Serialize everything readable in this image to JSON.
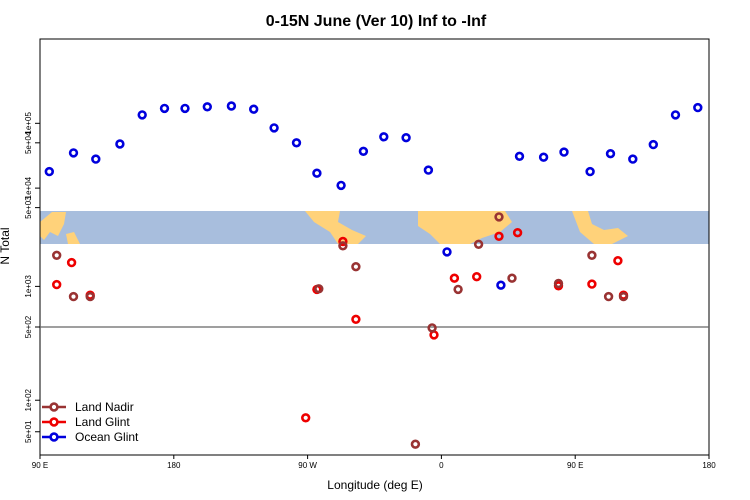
{
  "chart_data": {
    "type": "scatter",
    "title": "0-15N June (Ver 10)   Inf to -Inf",
    "xlabel": "Longitude (deg E)",
    "ylabel": "N Total",
    "x_axis": {
      "range": [
        0,
        360
      ],
      "ticks": [
        {
          "pos": 0,
          "label": "90 E"
        },
        {
          "pos": 72,
          "label": "180"
        },
        {
          "pos": 144,
          "label": "90 W"
        },
        {
          "pos": 216,
          "label": "0"
        },
        {
          "pos": 288,
          "label": "90 E"
        },
        {
          "pos": 360,
          "label": "180"
        }
      ]
    },
    "upper_panel": {
      "scale": "log",
      "range": [
        3000,
        2000000
      ],
      "ticks": [
        {
          "value": 5000,
          "label": "5e+03"
        },
        {
          "value": 10000,
          "label": "1e+04"
        },
        {
          "value": 50000,
          "label": "5e+04"
        },
        {
          "value": 100000,
          "label": "1e+05"
        }
      ]
    },
    "lower_panel": {
      "scale": "log",
      "range": [
        30,
        500
      ],
      "ticks": [
        {
          "value": 50,
          "label": "5e+01"
        },
        {
          "value": 100,
          "label": "1e+02"
        },
        {
          "value": 500,
          "label": "5e+02"
        }
      ]
    },
    "middle_panel": {
      "scale": "log",
      "range": [
        500,
        3000
      ],
      "ticks": [
        {
          "value": 1000,
          "label": "1e+03"
        }
      ]
    },
    "legend_position": "bottom-left",
    "series": [
      {
        "name": "Ocean Glint",
        "color": "#0000dd",
        "points": [
          [
            5,
            18000
          ],
          [
            18,
            35000
          ],
          [
            30,
            28000
          ],
          [
            43,
            48000
          ],
          [
            55,
            135000
          ],
          [
            67,
            170000
          ],
          [
            78,
            170000
          ],
          [
            90,
            180000
          ],
          [
            103,
            185000
          ],
          [
            115,
            165000
          ],
          [
            126,
            85000
          ],
          [
            138,
            50000
          ],
          [
            149,
            17000
          ],
          [
            162,
            11000
          ],
          [
            174,
            37000
          ],
          [
            185,
            62000
          ],
          [
            197,
            60000
          ],
          [
            209,
            19000
          ],
          [
            219,
            1800
          ],
          [
            248,
            1020
          ],
          [
            258,
            31000
          ],
          [
            271,
            30000
          ],
          [
            282,
            36000
          ],
          [
            296,
            18000
          ],
          [
            307,
            34000
          ],
          [
            319,
            28000
          ],
          [
            330,
            47000
          ],
          [
            342,
            135000
          ],
          [
            354,
            175000
          ]
        ]
      },
      {
        "name": "Land Glint",
        "color": "#ee0000",
        "points": [
          [
            9,
            1030
          ],
          [
            17,
            1500
          ],
          [
            27,
            860
          ],
          [
            149,
            950
          ],
          [
            163,
            2150
          ],
          [
            170,
            570
          ],
          [
            143,
            68
          ],
          [
            212,
            420
          ],
          [
            223,
            1150
          ],
          [
            235,
            1180
          ],
          [
            247,
            2350
          ],
          [
            257,
            2500
          ],
          [
            279,
            1010
          ],
          [
            297,
            1040
          ],
          [
            311,
            1550
          ],
          [
            314,
            860
          ]
        ]
      },
      {
        "name": "Land Nadir",
        "color": "#993333",
        "points": [
          [
            9,
            1700
          ],
          [
            18,
            840
          ],
          [
            27,
            840
          ],
          [
            150,
            960
          ],
          [
            163,
            2000
          ],
          [
            170,
            1400
          ],
          [
            211,
            490
          ],
          [
            202,
            38
          ],
          [
            225,
            950
          ],
          [
            236,
            2050
          ],
          [
            247,
            3600
          ],
          [
            254,
            1150
          ],
          [
            279,
            1050
          ],
          [
            297,
            1700
          ],
          [
            306,
            840
          ],
          [
            314,
            840
          ]
        ]
      }
    ]
  }
}
